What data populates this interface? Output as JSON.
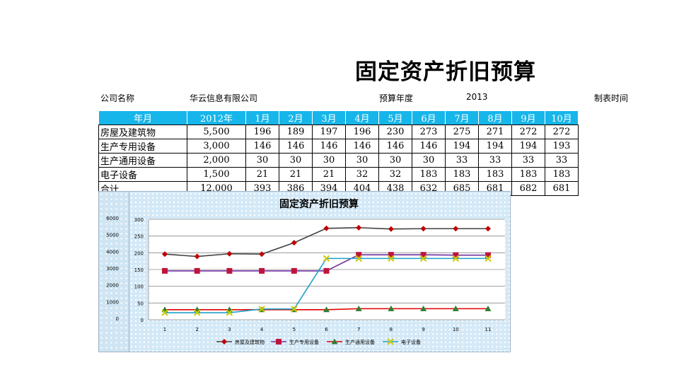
{
  "title": "固定资产折旧预算",
  "info": {
    "company_label": "公司名称",
    "company_value": "华云信息有限公司",
    "year_label": "预算年度",
    "year_value": "2013",
    "date_label": "制表时间"
  },
  "table": {
    "headers": [
      "年月",
      "2012年",
      "1月",
      "2月",
      "3月",
      "4月",
      "5月",
      "6月",
      "7月",
      "8月",
      "9月",
      "10月"
    ],
    "rows": [
      [
        "房屋及建筑物",
        "5,500",
        "196",
        "189",
        "197",
        "196",
        "230",
        "273",
        "275",
        "271",
        "272",
        "272"
      ],
      [
        "生产专用设备",
        "3,000",
        "146",
        "146",
        "146",
        "146",
        "146",
        "146",
        "194",
        "194",
        "194",
        "193"
      ],
      [
        "生产通用设备",
        "2,000",
        "30",
        "30",
        "30",
        "30",
        "30",
        "30",
        "33",
        "33",
        "33",
        "33"
      ],
      [
        "电子设备",
        "1,500",
        "21",
        "21",
        "21",
        "32",
        "32",
        "183",
        "183",
        "183",
        "183",
        "183"
      ],
      [
        "合计",
        "12,000",
        "393",
        "386",
        "394",
        "404",
        "438",
        "632",
        "685",
        "681",
        "682",
        "681"
      ]
    ]
  },
  "chart_data": [
    {
      "type": "line",
      "title": "固定资产折旧预算",
      "x": [
        1,
        2,
        3,
        4,
        5,
        6,
        7,
        8,
        9,
        10,
        11
      ],
      "ylim": [
        0,
        300
      ],
      "yticks": [
        0,
        50,
        100,
        150,
        200,
        250,
        300
      ],
      "grid": true,
      "legend": "bottom",
      "series": [
        {
          "name": "房屋及建筑物",
          "color": "#c00000",
          "line_color": "#404040",
          "marker": "diamond",
          "values": [
            196,
            189,
            197,
            196,
            230,
            273,
            275,
            271,
            272,
            272,
            272
          ]
        },
        {
          "name": "生产专用设备",
          "color": "#c0143c",
          "line_color": "#7030a0",
          "marker": "square",
          "values": [
            146,
            146,
            146,
            146,
            146,
            146,
            194,
            194,
            194,
            193,
            193
          ]
        },
        {
          "name": "生产通用设备",
          "color": "#2e7d32",
          "line_color": "#e00000",
          "marker": "triangle",
          "values": [
            30,
            30,
            30,
            30,
            30,
            30,
            33,
            33,
            33,
            33,
            33
          ]
        },
        {
          "name": "电子设备",
          "color": "#cccc00",
          "line_color": "#1fa0c8",
          "marker": "x",
          "values": [
            21,
            21,
            21,
            32,
            32,
            183,
            183,
            183,
            183,
            183,
            183
          ]
        }
      ]
    },
    {
      "type": "line",
      "title": "",
      "yticks": [
        0,
        1000,
        2000,
        3000,
        4000,
        5000,
        6000
      ],
      "ylim": [
        0,
        6000
      ]
    }
  ]
}
